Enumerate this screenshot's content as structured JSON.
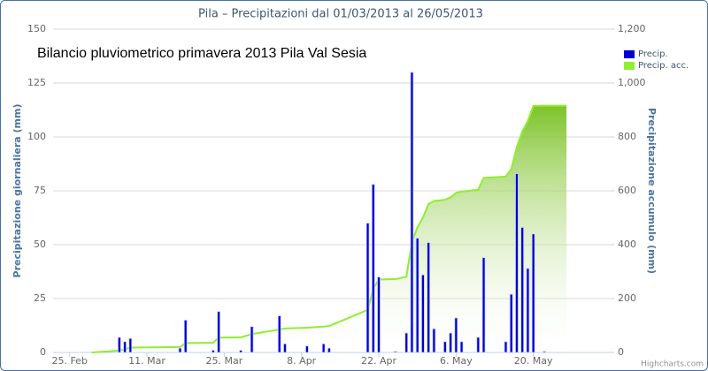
{
  "chart_data": {
    "type": "bar-line",
    "title": "Pila – Precipitazioni dal 01/03/2013 al 26/05/2013",
    "subtitle": "Bilancio pluviometrico primavera 2013 Pila Val Sesia",
    "ylabel": "Precipitazione giornaliera (mm)",
    "y2label": "Precipitazione accumulo (mm)",
    "credits": "Highcharts.com",
    "xlim": [
      "2013-02-22",
      "2013-06-03"
    ],
    "xticks": [
      {
        "value": "2013-02-25",
        "label": "25. Feb"
      },
      {
        "value": "2013-03-11",
        "label": "11. Mar"
      },
      {
        "value": "2013-03-25",
        "label": "25. Mar"
      },
      {
        "value": "2013-04-08",
        "label": "8. Apr"
      },
      {
        "value": "2013-04-22",
        "label": "22. Apr"
      },
      {
        "value": "2013-05-06",
        "label": "6. May"
      },
      {
        "value": "2013-05-20",
        "label": "20. May"
      }
    ],
    "ylim": [
      0,
      150
    ],
    "yticks": [
      0,
      25,
      50,
      75,
      100,
      125,
      150
    ],
    "y2lim": [
      0,
      1200
    ],
    "y2ticks": [
      0,
      200,
      400,
      600,
      800,
      {
        "value": 1000,
        "label": "1,000"
      },
      {
        "value": 1200,
        "label": "1,200"
      }
    ],
    "grid": true,
    "legend": "top-right",
    "series": [
      {
        "name": "Precip.",
        "type": "bar",
        "color": "#0000cc",
        "x": [
          "2013-03-06",
          "2013-03-07",
          "2013-03-08",
          "2013-03-17",
          "2013-03-18",
          "2013-03-23",
          "2013-03-24",
          "2013-03-28",
          "2013-03-30",
          "2013-04-04",
          "2013-04-05",
          "2013-04-09",
          "2013-04-12",
          "2013-04-13",
          "2013-04-20",
          "2013-04-21",
          "2013-04-22",
          "2013-04-25",
          "2013-04-27",
          "2013-04-28",
          "2013-04-29",
          "2013-04-30",
          "2013-05-01",
          "2013-05-02",
          "2013-05-04",
          "2013-05-05",
          "2013-05-06",
          "2013-05-07",
          "2013-05-10",
          "2013-05-11",
          "2013-05-15",
          "2013-05-16",
          "2013-05-17",
          "2013-05-18",
          "2013-05-19",
          "2013-05-20",
          "2013-05-22"
        ],
        "values": [
          7,
          5,
          6.5,
          2,
          15,
          1,
          19,
          1,
          12,
          17,
          4,
          3,
          4,
          2,
          60,
          78,
          35,
          0.5,
          9,
          130,
          53,
          36,
          51,
          11,
          5,
          9,
          16,
          5,
          7,
          44,
          5,
          27,
          83,
          58,
          39,
          55,
          0.5
        ]
      },
      {
        "name": "Precip. acc.",
        "type": "area",
        "axis": "y2",
        "color": "#90ee30",
        "x": [
          "2013-03-01",
          "2013-03-06",
          "2013-03-07",
          "2013-03-08",
          "2013-03-17",
          "2013-03-18",
          "2013-03-23",
          "2013-03-24",
          "2013-03-28",
          "2013-03-30",
          "2013-04-04",
          "2013-04-05",
          "2013-04-09",
          "2013-04-12",
          "2013-04-13",
          "2013-04-20",
          "2013-04-21",
          "2013-04-22",
          "2013-04-25",
          "2013-04-27",
          "2013-04-28",
          "2013-04-29",
          "2013-04-30",
          "2013-05-01",
          "2013-05-02",
          "2013-05-04",
          "2013-05-05",
          "2013-05-06",
          "2013-05-07",
          "2013-05-10",
          "2013-05-11",
          "2013-05-15",
          "2013-05-16",
          "2013-05-17",
          "2013-05-18",
          "2013-05-19",
          "2013-05-20",
          "2013-05-22",
          "2013-05-26"
        ],
        "values": [
          0,
          7,
          12,
          18,
          20,
          35,
          36,
          55,
          56,
          68,
          85,
          89,
          92,
          96,
          98,
          158,
          236,
          271,
          272,
          281,
          411,
          464,
          500,
          551,
          562,
          567,
          576,
          592,
          597,
          604,
          648,
          653,
          680,
          763,
          821,
          860,
          915,
          916,
          916
        ]
      }
    ]
  }
}
